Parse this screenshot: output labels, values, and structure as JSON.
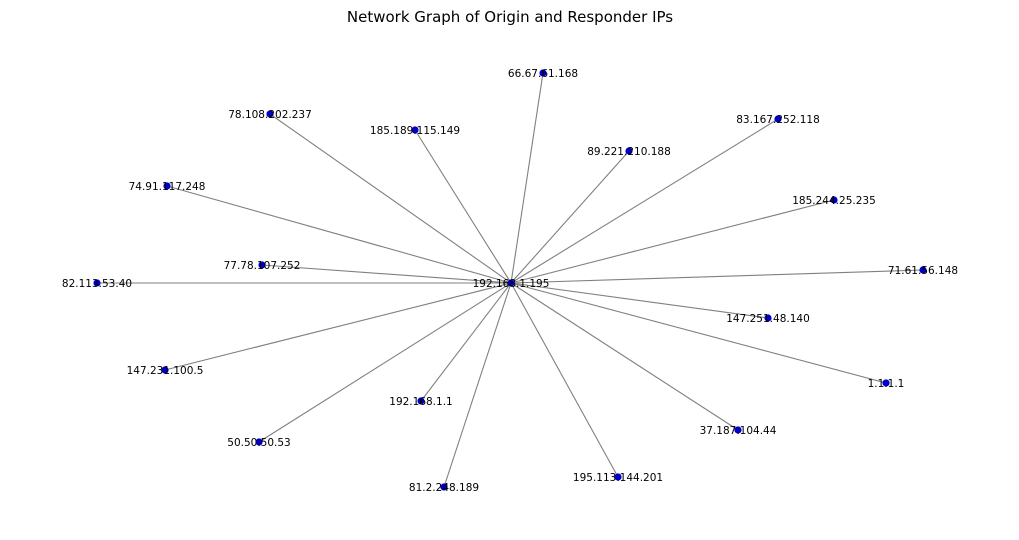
{
  "title": "Network Graph of Origin and Responder IPs",
  "style": {
    "edge_color": "#808080",
    "node_color": "#0000cc",
    "label_color": "#000000",
    "background": "#ffffff"
  },
  "graph": {
    "hub": {
      "id": "hub",
      "label": "192.168.1.195"
    },
    "nodes": [
      {
        "id": "n1",
        "label": "66.67.61.168"
      },
      {
        "id": "n2",
        "label": "78.108.202.237"
      },
      {
        "id": "n3",
        "label": "185.189.115.149"
      },
      {
        "id": "n4",
        "label": "89.221.210.188"
      },
      {
        "id": "n5",
        "label": "83.167.252.118"
      },
      {
        "id": "n6",
        "label": "74.91.117.248"
      },
      {
        "id": "n7",
        "label": "185.244.25.235"
      },
      {
        "id": "n8",
        "label": "77.78.107.252"
      },
      {
        "id": "n9",
        "label": "71.61.56.148"
      },
      {
        "id": "n10",
        "label": "82.113.53.40"
      },
      {
        "id": "n11",
        "label": "147.251.48.140"
      },
      {
        "id": "n12",
        "label": "147.231.100.5"
      },
      {
        "id": "n13",
        "label": "1.1.1.1"
      },
      {
        "id": "n14",
        "label": "192.168.1.1"
      },
      {
        "id": "n15",
        "label": "37.187.104.44"
      },
      {
        "id": "n16",
        "label": "50.50.50.53"
      },
      {
        "id": "n17",
        "label": "195.113.144.201"
      },
      {
        "id": "n18",
        "label": "81.2.248.189"
      }
    ],
    "edges": [
      [
        "hub",
        "n1"
      ],
      [
        "hub",
        "n2"
      ],
      [
        "hub",
        "n3"
      ],
      [
        "hub",
        "n4"
      ],
      [
        "hub",
        "n5"
      ],
      [
        "hub",
        "n6"
      ],
      [
        "hub",
        "n7"
      ],
      [
        "hub",
        "n8"
      ],
      [
        "hub",
        "n9"
      ],
      [
        "hub",
        "n10"
      ],
      [
        "hub",
        "n11"
      ],
      [
        "hub",
        "n12"
      ],
      [
        "hub",
        "n13"
      ],
      [
        "hub",
        "n14"
      ],
      [
        "hub",
        "n15"
      ],
      [
        "hub",
        "n16"
      ],
      [
        "hub",
        "n17"
      ],
      [
        "hub",
        "n18"
      ]
    ]
  }
}
